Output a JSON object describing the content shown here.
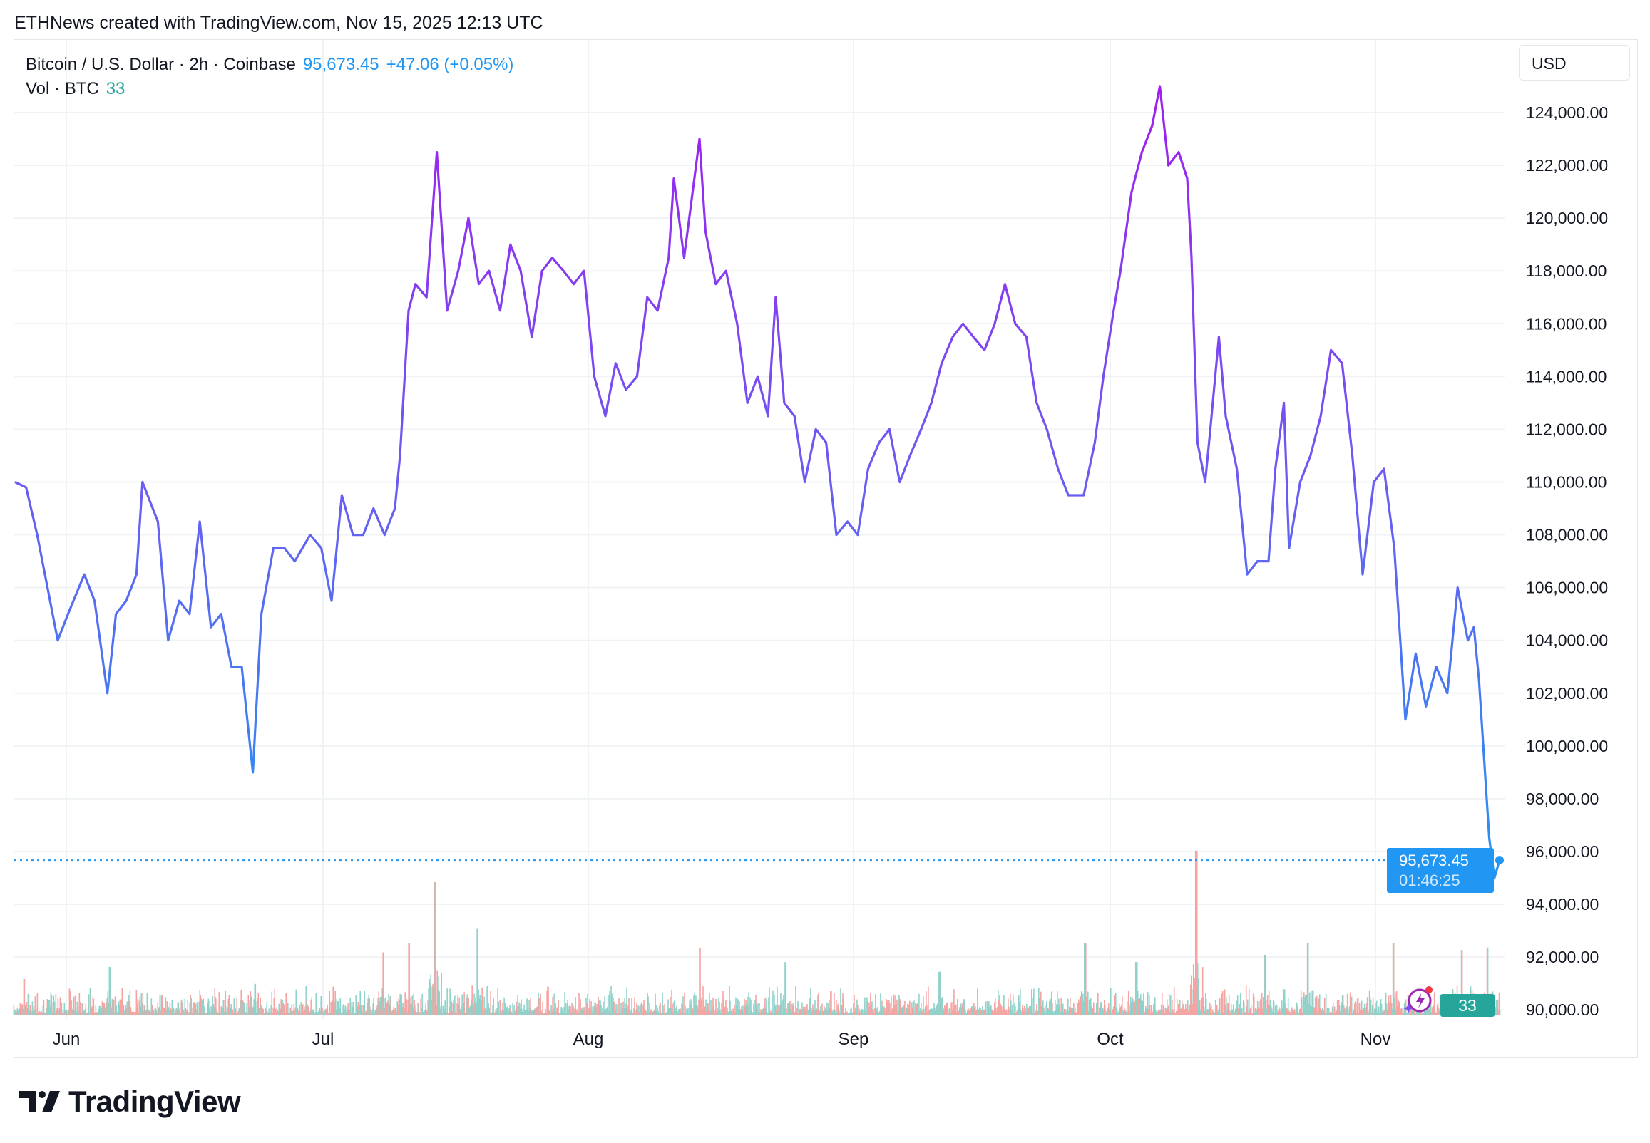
{
  "caption": "ETHNews created with TradingView.com, Nov 15, 2025 12:13 UTC",
  "legend": {
    "symbol": "Bitcoin / U.S. Dollar · 2h · Coinbase",
    "price": "95,673.45",
    "change": "+47.06 (+0.05%)",
    "vol_label": "Vol · BTC",
    "vol_value": "33"
  },
  "currency_button": "USD",
  "price_tag": {
    "price": "95,673.45",
    "countdown": "01:46:25"
  },
  "volume_tag": "33",
  "logo_text": "TradingView",
  "colors": {
    "line_top": "#a21cf0",
    "line_mid": "#6b5cf2",
    "line_bottom": "#2196f3",
    "vol_up": "#8fd3cb",
    "vol_down": "#f5a4a2",
    "grid": "#f0f3f5",
    "last_price": "#2196f3"
  },
  "chart_data": {
    "type": "line",
    "title": "Bitcoin / U.S. Dollar · 2h · Coinbase",
    "x_unit": "days since Jun 1, 2025",
    "xlim": [
      -6.2,
      173
    ],
    "ylim": [
      90000,
      126000
    ],
    "x_ticks": [
      {
        "day": 0,
        "label": "Jun"
      },
      {
        "day": 30,
        "label": "Jul"
      },
      {
        "day": 61,
        "label": "Aug"
      },
      {
        "day": 92,
        "label": "Sep"
      },
      {
        "day": 122,
        "label": "Oct"
      },
      {
        "day": 153,
        "label": "Nov"
      }
    ],
    "y_ticks": [
      "124,000.00",
      "122,000.00",
      "120,000.00",
      "118,000.00",
      "116,000.00",
      "114,000.00",
      "112,000.00",
      "110,000.00",
      "108,000.00",
      "106,000.00",
      "104,000.00",
      "102,000.00",
      "100,000.00",
      "98,000.00",
      "96,000.00",
      "94,000.00",
      "92,000.00",
      "90,000.00"
    ],
    "y_tick_values": [
      124000,
      122000,
      120000,
      118000,
      116000,
      114000,
      112000,
      110000,
      108000,
      106000,
      104000,
      102000,
      100000,
      98000,
      96000,
      94000,
      92000,
      90000
    ],
    "last_price": 95673.45,
    "series": [
      {
        "name": "BTCUSD",
        "points": [
          [
            -6.0,
            110000
          ],
          [
            -4.7,
            109800
          ],
          [
            -3.4,
            108000
          ],
          [
            -2.2,
            106000
          ],
          [
            -1.0,
            104000
          ],
          [
            0.2,
            105000
          ],
          [
            2.1,
            106500
          ],
          [
            3.3,
            105500
          ],
          [
            4.8,
            102000
          ],
          [
            5.8,
            105000
          ],
          [
            7.0,
            105500
          ],
          [
            8.2,
            106500
          ],
          [
            8.9,
            110000
          ],
          [
            10.1,
            109000
          ],
          [
            10.7,
            108500
          ],
          [
            11.9,
            104000
          ],
          [
            13.2,
            105500
          ],
          [
            14.4,
            105000
          ],
          [
            15.6,
            108500
          ],
          [
            16.9,
            104500
          ],
          [
            18.1,
            105000
          ],
          [
            19.3,
            103000
          ],
          [
            20.5,
            103000
          ],
          [
            21.8,
            99000
          ],
          [
            22.8,
            105000
          ],
          [
            24.2,
            107500
          ],
          [
            25.5,
            107500
          ],
          [
            26.7,
            107000
          ],
          [
            28.5,
            108000
          ],
          [
            29.8,
            107500
          ],
          [
            31.0,
            105500
          ],
          [
            32.2,
            109500
          ],
          [
            33.5,
            108000
          ],
          [
            34.7,
            108000
          ],
          [
            35.9,
            109000
          ],
          [
            37.2,
            108000
          ],
          [
            38.4,
            109000
          ],
          [
            39.0,
            111000
          ],
          [
            40.0,
            116500
          ],
          [
            40.8,
            117500
          ],
          [
            42.1,
            117000
          ],
          [
            43.3,
            122500
          ],
          [
            44.5,
            116500
          ],
          [
            45.8,
            118000
          ],
          [
            47.0,
            120000
          ],
          [
            48.2,
            117500
          ],
          [
            49.4,
            118000
          ],
          [
            50.7,
            116500
          ],
          [
            51.9,
            119000
          ],
          [
            53.1,
            118000
          ],
          [
            54.4,
            115500
          ],
          [
            55.6,
            118000
          ],
          [
            56.8,
            118500
          ],
          [
            58.1,
            118000
          ],
          [
            59.3,
            117500
          ],
          [
            60.5,
            118000
          ],
          [
            61.7,
            114000
          ],
          [
            63.0,
            112500
          ],
          [
            64.2,
            114500
          ],
          [
            65.4,
            113500
          ],
          [
            66.7,
            114000
          ],
          [
            67.9,
            117000
          ],
          [
            69.1,
            116500
          ],
          [
            70.4,
            118500
          ],
          [
            71.0,
            121500
          ],
          [
            72.2,
            118500
          ],
          [
            74.0,
            123000
          ],
          [
            74.7,
            119500
          ],
          [
            75.9,
            117500
          ],
          [
            77.1,
            118000
          ],
          [
            78.4,
            116000
          ],
          [
            79.6,
            113000
          ],
          [
            80.8,
            114000
          ],
          [
            82.0,
            112500
          ],
          [
            82.9,
            117000
          ],
          [
            83.9,
            113000
          ],
          [
            85.1,
            112500
          ],
          [
            86.3,
            110000
          ],
          [
            87.6,
            112000
          ],
          [
            88.8,
            111500
          ],
          [
            90.0,
            108000
          ],
          [
            91.3,
            108500
          ],
          [
            92.5,
            108000
          ],
          [
            93.7,
            110500
          ],
          [
            95.0,
            111500
          ],
          [
            96.2,
            112000
          ],
          [
            97.4,
            110000
          ],
          [
            98.6,
            111000
          ],
          [
            99.9,
            112000
          ],
          [
            101.1,
            113000
          ],
          [
            102.3,
            114500
          ],
          [
            103.6,
            115500
          ],
          [
            104.8,
            116000
          ],
          [
            106.0,
            115500
          ],
          [
            107.3,
            115000
          ],
          [
            108.5,
            116000
          ],
          [
            109.7,
            117500
          ],
          [
            110.9,
            116000
          ],
          [
            112.2,
            115500
          ],
          [
            113.4,
            113000
          ],
          [
            114.6,
            112000
          ],
          [
            115.9,
            110500
          ],
          [
            117.1,
            109500
          ],
          [
            118.9,
            109500
          ],
          [
            120.2,
            111500
          ],
          [
            121.2,
            114000
          ],
          [
            122.4,
            116500
          ],
          [
            123.2,
            118000
          ],
          [
            124.5,
            121000
          ],
          [
            125.7,
            122500
          ],
          [
            126.9,
            123500
          ],
          [
            127.8,
            125000
          ],
          [
            128.8,
            122000
          ],
          [
            130.0,
            122500
          ],
          [
            131.0,
            121500
          ],
          [
            131.5,
            118500
          ],
          [
            132.2,
            111500
          ],
          [
            133.1,
            110000
          ],
          [
            133.7,
            112000
          ],
          [
            134.7,
            115500
          ],
          [
            135.5,
            112500
          ],
          [
            136.8,
            110500
          ],
          [
            138.0,
            106500
          ],
          [
            139.2,
            107000
          ],
          [
            140.5,
            107000
          ],
          [
            141.3,
            110500
          ],
          [
            142.3,
            113000
          ],
          [
            142.9,
            107500
          ],
          [
            144.2,
            110000
          ],
          [
            145.4,
            111000
          ],
          [
            146.6,
            112500
          ],
          [
            147.8,
            115000
          ],
          [
            149.1,
            114500
          ],
          [
            150.3,
            111000
          ],
          [
            151.5,
            106500
          ],
          [
            152.8,
            110000
          ],
          [
            154.0,
            110500
          ],
          [
            155.2,
            107500
          ],
          [
            156.5,
            101000
          ],
          [
            157.7,
            103500
          ],
          [
            158.9,
            101500
          ],
          [
            160.1,
            103000
          ],
          [
            161.4,
            102000
          ],
          [
            162.6,
            106000
          ],
          [
            163.8,
            104000
          ],
          [
            164.5,
            104500
          ],
          [
            165.1,
            102500
          ],
          [
            165.7,
            99500
          ],
          [
            166.3,
            96500
          ],
          [
            166.9,
            95000
          ],
          [
            167.5,
            95673
          ]
        ]
      }
    ],
    "volume": {
      "label": "Vol · BTC",
      "last": 33,
      "spikes": [
        [
          -5,
          0.15
        ],
        [
          5,
          0.2
        ],
        [
          22,
          0.13
        ],
        [
          37,
          0.26
        ],
        [
          40,
          0.3
        ],
        [
          43,
          0.55
        ],
        [
          48,
          0.36
        ],
        [
          74,
          0.28
        ],
        [
          84,
          0.22
        ],
        [
          102,
          0.18
        ],
        [
          119,
          0.3
        ],
        [
          125,
          0.22
        ],
        [
          132,
          0.68
        ],
        [
          140,
          0.25
        ],
        [
          145,
          0.3
        ],
        [
          155,
          0.3
        ],
        [
          163,
          0.27
        ],
        [
          166,
          0.28
        ]
      ]
    }
  }
}
